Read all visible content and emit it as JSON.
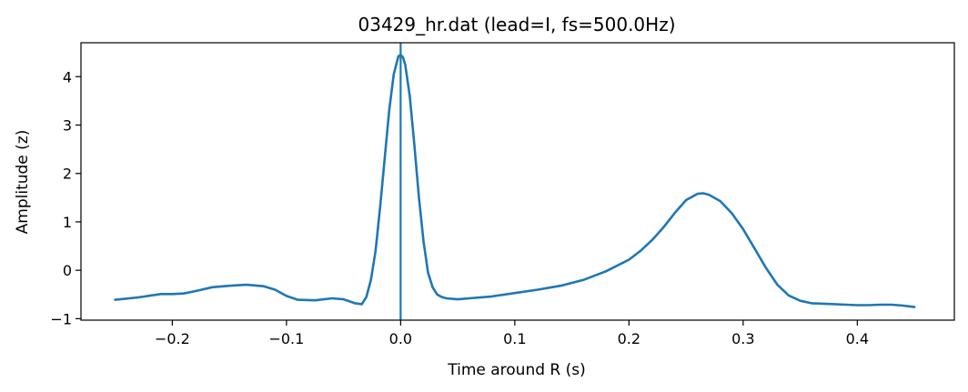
{
  "chart_data": {
    "type": "line",
    "title": "03429_hr.dat (lead=I, fs=500.0Hz)",
    "xlabel": "Time around R (s)",
    "ylabel": "Amplitude (z)",
    "xlim": [
      -0.28,
      0.485
    ],
    "ylim": [
      -1.03,
      4.7
    ],
    "xticks": [
      -0.2,
      -0.1,
      0.0,
      0.1,
      0.2,
      0.3,
      0.4
    ],
    "xtick_labels": [
      "−0.2",
      "−0.1",
      "0.0",
      "0.1",
      "0.2",
      "0.3",
      "0.4"
    ],
    "yticks": [
      -1,
      0,
      1,
      2,
      3,
      4
    ],
    "ytick_labels": [
      "−1",
      "0",
      "1",
      "2",
      "3",
      "4"
    ],
    "grid": false,
    "line_color": "#1f77b4",
    "vline": {
      "x": 0.0,
      "color": "#1f77b4"
    },
    "series": [
      {
        "x": [
          -0.25,
          -0.23,
          -0.21,
          -0.2,
          -0.19,
          -0.18,
          -0.165,
          -0.15,
          -0.135,
          -0.12,
          -0.11,
          -0.1,
          -0.09,
          -0.075,
          -0.06,
          -0.05,
          -0.04,
          -0.034,
          -0.03,
          -0.026,
          -0.022,
          -0.018,
          -0.014,
          -0.01,
          -0.006,
          -0.002,
          0.0,
          0.002,
          0.004,
          0.008,
          0.012,
          0.016,
          0.02,
          0.024,
          0.028,
          0.032,
          0.036,
          0.04,
          0.05,
          0.06,
          0.08,
          0.1,
          0.12,
          0.14,
          0.16,
          0.18,
          0.2,
          0.21,
          0.22,
          0.23,
          0.24,
          0.25,
          0.26,
          0.265,
          0.27,
          0.28,
          0.29,
          0.3,
          0.31,
          0.32,
          0.33,
          0.34,
          0.35,
          0.36,
          0.37,
          0.38,
          0.39,
          0.4,
          0.41,
          0.42,
          0.43,
          0.44,
          0.45
        ],
        "y": [
          -0.61,
          -0.56,
          -0.49,
          -0.49,
          -0.48,
          -0.43,
          -0.35,
          -0.32,
          -0.3,
          -0.33,
          -0.4,
          -0.53,
          -0.61,
          -0.62,
          -0.58,
          -0.6,
          -0.68,
          -0.7,
          -0.55,
          -0.2,
          0.4,
          1.3,
          2.3,
          3.3,
          4.05,
          4.42,
          4.45,
          4.4,
          4.25,
          3.6,
          2.6,
          1.5,
          0.6,
          -0.05,
          -0.35,
          -0.5,
          -0.55,
          -0.58,
          -0.6,
          -0.58,
          -0.54,
          -0.47,
          -0.4,
          -0.32,
          -0.2,
          -0.02,
          0.22,
          0.4,
          0.62,
          0.88,
          1.18,
          1.45,
          1.58,
          1.59,
          1.56,
          1.43,
          1.18,
          0.85,
          0.45,
          0.05,
          -0.3,
          -0.52,
          -0.63,
          -0.68,
          -0.69,
          -0.7,
          -0.71,
          -0.72,
          -0.72,
          -0.71,
          -0.71,
          -0.73,
          -0.76
        ]
      }
    ]
  }
}
